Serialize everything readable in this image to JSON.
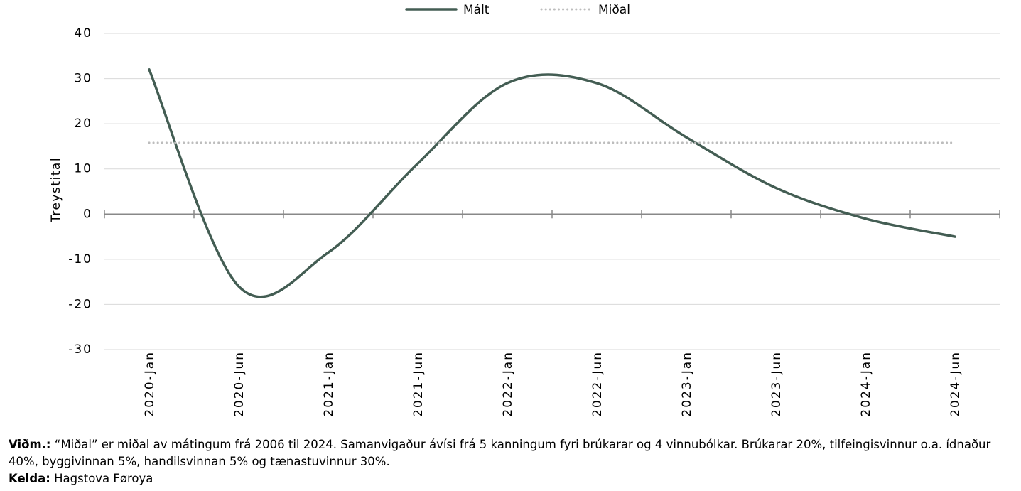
{
  "chart_data": {
    "type": "line",
    "y_label": "Treystital",
    "categories": [
      "2020-Jan",
      "2020-Jun",
      "2021-Jan",
      "2021-Jun",
      "2022-Jan",
      "2022-Jun",
      "2023-Jan",
      "2023-Jun",
      "2024-Jan",
      "2024-Jun"
    ],
    "series": [
      {
        "name": "Mált",
        "color": "#435d53",
        "style": "solid",
        "values": [
          32,
          -16,
          -8.5,
          11.2,
          29,
          29,
          17,
          5.8,
          -1,
          -5
        ]
      },
      {
        "name": "Miðal",
        "color": "#bdbdbd",
        "style": "dotted",
        "values": [
          15.8,
          15.8,
          15.8,
          15.8,
          15.8,
          15.8,
          15.8,
          15.8,
          15.8,
          15.8
        ]
      }
    ],
    "ylim": [
      -30,
      40
    ],
    "yticks": [
      -30,
      -20,
      -10,
      0,
      10,
      20,
      30,
      40
    ],
    "grid": true,
    "legend": "top"
  },
  "notes": [
    {
      "label": "Viðm.:",
      "text": "“Miðal” er miðal av mátingum frá 2006 til 2024. Samanvigaður ávísi frá 5 kanningum fyri brúkarar og 4 vinnubólkar. Brúkarar 20%, tilfeingisvinnur o.a. ídnaður 40%, byggivinnan 5%, handilsvinnan 5% og tænastuvinnur 30%."
    },
    {
      "label": "Kelda:",
      "text": "Hagstova Føroya"
    }
  ]
}
